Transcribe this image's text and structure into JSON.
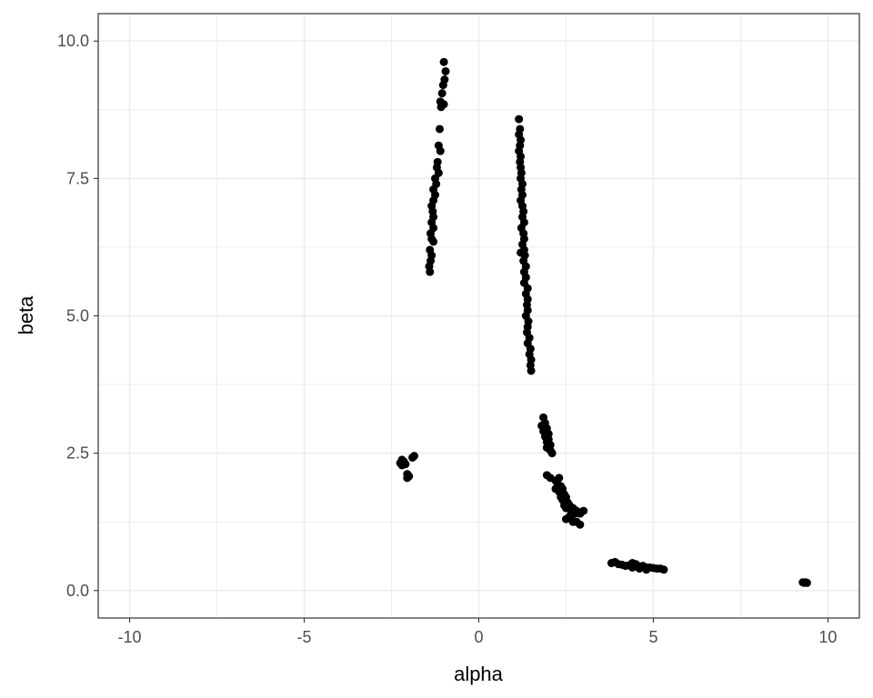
{
  "chart_data": {
    "type": "scatter",
    "title": "",
    "xlabel": "alpha",
    "ylabel": "beta",
    "xlim": [
      -10.9,
      10.9
    ],
    "ylim": [
      -0.5,
      10.5
    ],
    "x_ticks": [
      -10,
      -5,
      0,
      5,
      10
    ],
    "x_tick_labels": [
      "-10",
      "-5",
      "0",
      "5",
      "10"
    ],
    "y_ticks": [
      0.0,
      2.5,
      5.0,
      7.5,
      10.0
    ],
    "y_tick_labels": [
      "0.0",
      "2.5",
      "5.0",
      "7.5",
      "10.0"
    ],
    "grid": true,
    "legend": "none",
    "colors": {
      "points": "#000000",
      "grid": "#ebebeb",
      "panel_border": "#333333"
    },
    "series": [
      {
        "points": [
          [
            -1.0,
            9.62
          ],
          [
            -0.95,
            9.45
          ],
          [
            -0.98,
            9.3
          ],
          [
            -1.02,
            9.2
          ],
          [
            -1.05,
            9.05
          ],
          [
            -1.1,
            8.9
          ],
          [
            -1.0,
            8.85
          ],
          [
            -1.08,
            8.8
          ],
          [
            -1.12,
            8.4
          ],
          [
            -1.15,
            8.1
          ],
          [
            -1.1,
            8.0
          ],
          [
            -1.18,
            7.8
          ],
          [
            -1.2,
            7.7
          ],
          [
            -1.15,
            7.6
          ],
          [
            -1.25,
            7.5
          ],
          [
            -1.22,
            7.4
          ],
          [
            -1.3,
            7.3
          ],
          [
            -1.25,
            7.2
          ],
          [
            -1.3,
            7.1
          ],
          [
            -1.35,
            7.0
          ],
          [
            -1.32,
            6.9
          ],
          [
            -1.3,
            6.8
          ],
          [
            -1.35,
            6.7
          ],
          [
            -1.3,
            6.6
          ],
          [
            -1.38,
            6.5
          ],
          [
            -1.35,
            6.4
          ],
          [
            -1.3,
            6.35
          ],
          [
            -1.4,
            6.2
          ],
          [
            -1.35,
            6.1
          ],
          [
            -1.38,
            6.0
          ],
          [
            -1.42,
            5.9
          ],
          [
            -1.4,
            5.8
          ],
          [
            1.15,
            8.58
          ],
          [
            1.18,
            8.4
          ],
          [
            1.15,
            8.3
          ],
          [
            1.2,
            8.2
          ],
          [
            1.18,
            8.1
          ],
          [
            1.15,
            8.0
          ],
          [
            1.2,
            7.9
          ],
          [
            1.18,
            7.8
          ],
          [
            1.2,
            7.7
          ],
          [
            1.22,
            7.6
          ],
          [
            1.2,
            7.5
          ],
          [
            1.25,
            7.4
          ],
          [
            1.22,
            7.3
          ],
          [
            1.25,
            7.2
          ],
          [
            1.2,
            7.1
          ],
          [
            1.25,
            7.0
          ],
          [
            1.28,
            6.9
          ],
          [
            1.25,
            6.8
          ],
          [
            1.3,
            6.7
          ],
          [
            1.22,
            6.6
          ],
          [
            1.28,
            6.5
          ],
          [
            1.3,
            6.4
          ],
          [
            1.25,
            6.3
          ],
          [
            1.3,
            6.2
          ],
          [
            1.2,
            6.15
          ],
          [
            1.32,
            6.1
          ],
          [
            1.28,
            6.0
          ],
          [
            1.35,
            5.9
          ],
          [
            1.3,
            5.8
          ],
          [
            1.35,
            5.7
          ],
          [
            1.3,
            5.6
          ],
          [
            1.4,
            5.5
          ],
          [
            1.35,
            5.4
          ],
          [
            1.4,
            5.3
          ],
          [
            1.38,
            5.2
          ],
          [
            1.4,
            5.1
          ],
          [
            1.35,
            5.0
          ],
          [
            1.42,
            4.9
          ],
          [
            1.4,
            4.8
          ],
          [
            1.38,
            4.7
          ],
          [
            1.45,
            4.6
          ],
          [
            1.4,
            4.5
          ],
          [
            1.48,
            4.4
          ],
          [
            1.45,
            4.3
          ],
          [
            1.5,
            4.2
          ],
          [
            1.48,
            4.1
          ],
          [
            1.5,
            4.0
          ],
          [
            1.85,
            3.15
          ],
          [
            1.9,
            3.05
          ],
          [
            1.8,
            3.0
          ],
          [
            1.95,
            2.95
          ],
          [
            1.85,
            2.9
          ],
          [
            2.0,
            2.85
          ],
          [
            1.9,
            2.8
          ],
          [
            2.0,
            2.75
          ],
          [
            1.95,
            2.7
          ],
          [
            2.05,
            2.65
          ],
          [
            1.95,
            2.6
          ],
          [
            2.05,
            2.55
          ],
          [
            2.1,
            2.5
          ],
          [
            1.95,
            2.1
          ],
          [
            2.05,
            2.05
          ],
          [
            2.2,
            2.0
          ],
          [
            2.3,
            2.05
          ],
          [
            2.25,
            1.95
          ],
          [
            2.35,
            1.9
          ],
          [
            2.2,
            1.85
          ],
          [
            2.4,
            1.85
          ],
          [
            2.3,
            1.8
          ],
          [
            2.45,
            1.75
          ],
          [
            2.35,
            1.7
          ],
          [
            2.5,
            1.7
          ],
          [
            2.4,
            1.65
          ],
          [
            2.55,
            1.6
          ],
          [
            2.45,
            1.55
          ],
          [
            2.6,
            1.55
          ],
          [
            2.5,
            1.5
          ],
          [
            2.7,
            1.5
          ],
          [
            2.65,
            1.45
          ],
          [
            2.8,
            1.45
          ],
          [
            2.75,
            1.4
          ],
          [
            3.0,
            1.45
          ],
          [
            2.9,
            1.4
          ],
          [
            2.6,
            1.35
          ],
          [
            2.5,
            1.3
          ],
          [
            2.65,
            1.3
          ],
          [
            2.8,
            1.25
          ],
          [
            2.7,
            1.25
          ],
          [
            2.9,
            1.2
          ],
          [
            -2.2,
            2.38
          ],
          [
            -2.15,
            2.35
          ],
          [
            -2.25,
            2.32
          ],
          [
            -2.2,
            2.28
          ],
          [
            -2.1,
            2.3
          ],
          [
            -1.85,
            2.45
          ],
          [
            -1.9,
            2.42
          ],
          [
            -2.05,
            2.12
          ],
          [
            -2.0,
            2.08
          ],
          [
            -2.05,
            2.05
          ],
          [
            3.8,
            0.5
          ],
          [
            3.9,
            0.52
          ],
          [
            4.0,
            0.48
          ],
          [
            4.1,
            0.47
          ],
          [
            4.2,
            0.45
          ],
          [
            4.3,
            0.46
          ],
          [
            4.4,
            0.5
          ],
          [
            4.5,
            0.48
          ],
          [
            4.6,
            0.44
          ],
          [
            4.7,
            0.45
          ],
          [
            4.8,
            0.42
          ],
          [
            4.9,
            0.42
          ],
          [
            5.0,
            0.41
          ],
          [
            5.1,
            0.4
          ],
          [
            5.2,
            0.4
          ],
          [
            5.3,
            0.38
          ],
          [
            4.4,
            0.42
          ],
          [
            4.6,
            0.4
          ],
          [
            4.8,
            0.38
          ],
          [
            9.28,
            0.15
          ],
          [
            9.32,
            0.14
          ],
          [
            9.36,
            0.15
          ],
          [
            9.4,
            0.14
          ]
        ]
      }
    ]
  }
}
